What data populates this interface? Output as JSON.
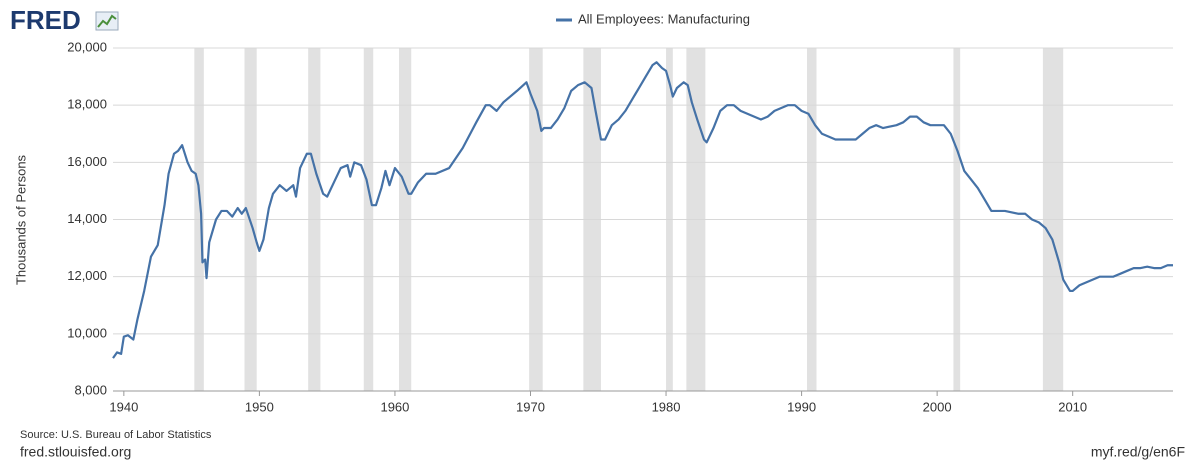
{
  "logo": "FRED",
  "source": "Source: U.S. Bureau of Labor Statistics",
  "site": "fred.stlouisfed.org",
  "short_link": "myf.red/g/en6F",
  "chart_data": {
    "type": "line",
    "y_label": "Thousands of Persons",
    "xlim": [
      1939.2,
      2017.4
    ],
    "xticks": [
      1940,
      1950,
      1960,
      1970,
      1980,
      1990,
      2000,
      2010
    ],
    "ylim": [
      8000,
      20000
    ],
    "yticks": [
      {
        "value": 8000,
        "label": "8,000"
      },
      {
        "value": 10000,
        "label": "10,000"
      },
      {
        "value": 12000,
        "label": "12,000"
      },
      {
        "value": 14000,
        "label": "14,000"
      },
      {
        "value": 16000,
        "label": "16,000"
      },
      {
        "value": 18000,
        "label": "18,000"
      },
      {
        "value": 20000,
        "label": "20,000"
      }
    ],
    "grid": true,
    "legend": "top",
    "recessions": [
      [
        1945.2,
        1945.9
      ],
      [
        1948.9,
        1949.8
      ],
      [
        1953.6,
        1954.5
      ],
      [
        1957.7,
        1958.4
      ],
      [
        1960.3,
        1961.2
      ],
      [
        1969.9,
        1970.9
      ],
      [
        1973.9,
        1975.2
      ],
      [
        1980.0,
        1980.5
      ],
      [
        1981.5,
        1982.9
      ],
      [
        1990.4,
        1991.1
      ],
      [
        2001.2,
        2001.7
      ],
      [
        2007.8,
        2009.3
      ]
    ],
    "recession_color": "#e1e1e1",
    "x": [
      1939.2,
      1939.5,
      1939.8,
      1940.0,
      1940.3,
      1940.7,
      1941.0,
      1941.5,
      1942.0,
      1942.5,
      1943.0,
      1943.3,
      1943.7,
      1944.0,
      1944.3,
      1944.7,
      1945.0,
      1945.3,
      1945.5,
      1945.7,
      1945.8,
      1946.0,
      1946.1,
      1946.3,
      1946.8,
      1947.2,
      1947.6,
      1948.0,
      1948.4,
      1948.7,
      1949.0,
      1949.5,
      1949.8,
      1950.0,
      1950.3,
      1950.7,
      1951.0,
      1951.5,
      1952.0,
      1952.5,
      1952.7,
      1953.0,
      1953.5,
      1953.8,
      1954.2,
      1954.7,
      1955.0,
      1955.5,
      1956.0,
      1956.5,
      1956.7,
      1957.0,
      1957.5,
      1957.9,
      1958.3,
      1958.6,
      1959.0,
      1959.3,
      1959.6,
      1960.0,
      1960.5,
      1961.0,
      1961.2,
      1961.7,
      1962.3,
      1963.0,
      1964.0,
      1965.0,
      1966.0,
      1966.7,
      1967.0,
      1967.5,
      1968.0,
      1969.0,
      1969.7,
      1970.0,
      1970.5,
      1970.8,
      1971.0,
      1971.5,
      1972.0,
      1972.5,
      1973.0,
      1973.5,
      1974.0,
      1974.5,
      1974.8,
      1975.2,
      1975.5,
      1976.0,
      1976.5,
      1977.0,
      1977.5,
      1978.0,
      1978.5,
      1979.0,
      1979.3,
      1979.7,
      1980.0,
      1980.3,
      1980.5,
      1980.8,
      1981.3,
      1981.6,
      1981.9,
      1982.3,
      1982.8,
      1983.0,
      1983.5,
      1984.0,
      1984.5,
      1985.0,
      1985.5,
      1986.0,
      1986.5,
      1987.0,
      1987.5,
      1988.0,
      1988.5,
      1989.0,
      1989.5,
      1990.0,
      1990.5,
      1991.0,
      1991.5,
      1992.0,
      1992.5,
      1993.0,
      1993.5,
      1994.0,
      1994.5,
      1995.0,
      1995.5,
      1996.0,
      1997.0,
      1997.5,
      1998.0,
      1998.5,
      1999.0,
      1999.5,
      2000.0,
      2000.5,
      2001.0,
      2001.5,
      2002.0,
      2002.5,
      2003.0,
      2003.5,
      2004.0,
      2004.5,
      2005.0,
      2006.0,
      2006.5,
      2007.0,
      2007.5,
      2008.0,
      2008.5,
      2009.0,
      2009.3,
      2009.8,
      2010.0,
      2010.5,
      2011.0,
      2011.5,
      2012.0,
      2013.0,
      2013.5,
      2014.0,
      2014.5,
      2015.0,
      2015.5,
      2016.0,
      2016.5,
      2017.0,
      2017.4
    ],
    "series": [
      {
        "name": "All Employees: Manufacturing",
        "color": "#4572a7",
        "values": [
          9150,
          9350,
          9300,
          9900,
          9950,
          9800,
          10500,
          11500,
          12700,
          13100,
          14500,
          15600,
          16300,
          16400,
          16600,
          16000,
          15700,
          15600,
          15200,
          14200,
          12500,
          12600,
          11950,
          13200,
          14000,
          14300,
          14300,
          14100,
          14400,
          14200,
          14400,
          13700,
          13200,
          12900,
          13300,
          14400,
          14900,
          15200,
          15000,
          15200,
          14800,
          15800,
          16300,
          16300,
          15600,
          14900,
          14800,
          15300,
          15800,
          15900,
          15500,
          16000,
          15900,
          15400,
          14500,
          14500,
          15100,
          15700,
          15200,
          15800,
          15500,
          14900,
          14900,
          15300,
          15600,
          15600,
          15800,
          16500,
          17400,
          18000,
          18000,
          17800,
          18100,
          18500,
          18800,
          18400,
          17800,
          17100,
          17200,
          17200,
          17500,
          17900,
          18500,
          18700,
          18800,
          18600,
          17800,
          16800,
          16800,
          17300,
          17500,
          17800,
          18200,
          18600,
          19000,
          19400,
          19500,
          19300,
          19200,
          18700,
          18300,
          18600,
          18800,
          18700,
          18100,
          17500,
          16800,
          16700,
          17200,
          17800,
          18000,
          18000,
          17800,
          17700,
          17600,
          17500,
          17600,
          17800,
          17900,
          18000,
          18000,
          17800,
          17700,
          17300,
          17000,
          16900,
          16800,
          16800,
          16800,
          16800,
          17000,
          17200,
          17300,
          17200,
          17300,
          17400,
          17600,
          17600,
          17400,
          17300,
          17300,
          17300,
          17000,
          16400,
          15700,
          15400,
          15100,
          14700,
          14300,
          14300,
          14300,
          14200,
          14200,
          14000,
          13900,
          13700,
          13300,
          12500,
          11900,
          11500,
          11500,
          11700,
          11800,
          11900,
          12000,
          12000,
          12100,
          12200,
          12300,
          12300,
          12350,
          12300,
          12300,
          12400,
          12400
        ]
      }
    ]
  }
}
